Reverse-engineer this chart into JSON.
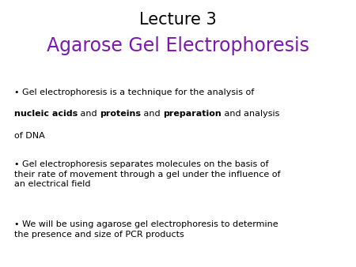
{
  "title_line1": "Lecture 3",
  "title_line2": "Agarose Gel Electrophoresis",
  "title_line1_color": "#000000",
  "title_line2_color": "#7B18B0",
  "background_color": "#ffffff",
  "text_color": "#000000",
  "font_size_title1": 15,
  "font_size_title2": 17,
  "font_size_body": 8.0,
  "bullet1_line1": "• Gel electrophoresis is a technique for the analysis of",
  "bullet1_line3": "of DNA",
  "bullet2": "• Gel electrophoresis separates molecules on the basis of\ntheir rate of movement through a gel under the influence of\nan electrical field",
  "bullet3": "• We will be using agarose gel electrophoresis to determine\nthe presence and size of PCR products",
  "b1_seg1": "nucleic acids",
  "b1_seg2": " and ",
  "b1_seg3": "proteins",
  "b1_seg4": " and ",
  "b1_seg5": "preparation",
  "b1_seg6": " and analysis"
}
